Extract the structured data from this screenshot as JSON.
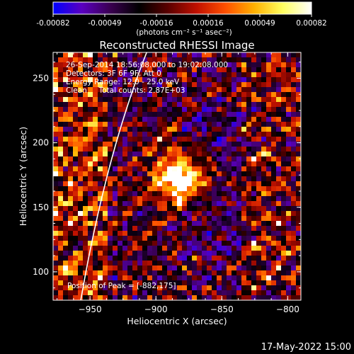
{
  "colorbar": {
    "tick_labels": [
      "-0.00082",
      "-0.00049",
      "-0.00016",
      "0.00016",
      "0.00049",
      "0.00082"
    ],
    "unit_text": "(photons cm⁻² s⁻¹ asec⁻²)",
    "stops": [
      "#0000ff",
      "#5a00c0",
      "#3a0050",
      "#000000",
      "#5a0000",
      "#c01000",
      "#ff5000",
      "#ffb000",
      "#ffff60",
      "#ffffff"
    ]
  },
  "image": {
    "title": "Reconstructed RHESSI Image",
    "info_lines": [
      "26-Sep-2014 18:56:08.000 to 19:02:08.000",
      "Detectors: 3F 6F 9F, Att 0",
      "Energy Range: 12.0 - 25.0 keV",
      "Clean     Total counts: 2.87E+03"
    ],
    "peak_text": "Position of Peak = [-882,175]",
    "peak": {
      "x": -882,
      "y": 175
    }
  },
  "axes": {
    "xlabel": "Heliocentric X (arcsec)",
    "ylabel": "Heliocentric Y (arcsec)",
    "xlim": [
      -978,
      -790
    ],
    "ylim": [
      78,
      270
    ],
    "xticks": [
      -950,
      -900,
      -850,
      -800
    ],
    "yticks": [
      100,
      150,
      200,
      250
    ],
    "xtick_labels": [
      "−950",
      "−900",
      "−850",
      "−800"
    ],
    "ytick_labels": [
      "100",
      "150",
      "200",
      "250"
    ]
  },
  "footer": {
    "timestamp": "17-May-2022 15:00"
  }
}
